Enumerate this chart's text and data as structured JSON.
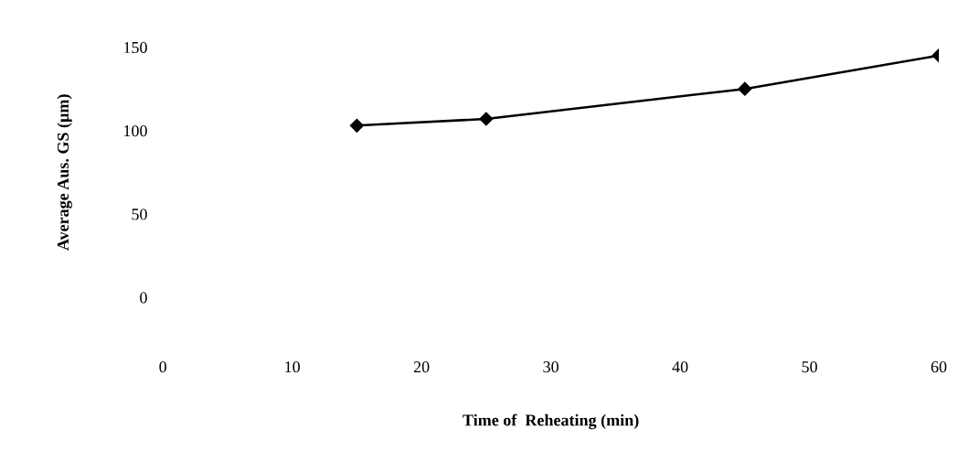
{
  "chart_data": {
    "type": "line",
    "xlabel": "Time of  Reheating (min)",
    "ylabel": "Average Aus. GS (µm)",
    "x": [
      15,
      25,
      45,
      60
    ],
    "series": [
      {
        "color": "#000000",
        "values": [
          103,
          107,
          125,
          145
        ]
      }
    ],
    "xlim": [
      0,
      60
    ],
    "ylim": [
      0,
      150
    ],
    "xticks": [
      0,
      10,
      20,
      30,
      40,
      50,
      60
    ],
    "yticks": [
      0,
      50,
      100,
      150
    ],
    "marker": "diamond",
    "line_style": "solid",
    "grid": false,
    "legend": false
  }
}
